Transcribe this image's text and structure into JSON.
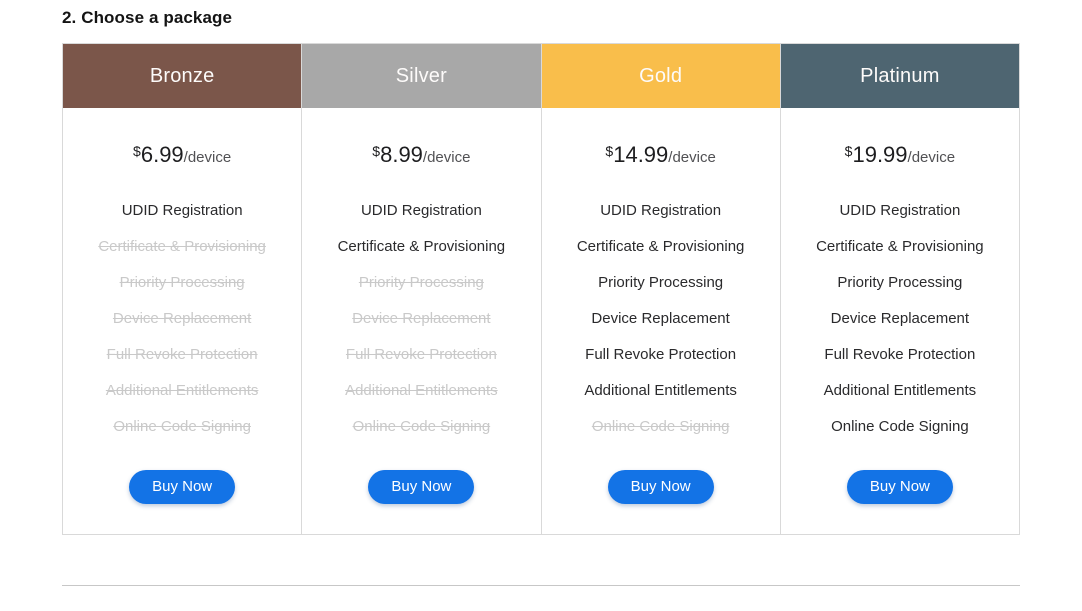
{
  "page": {
    "title": "2. Choose a package"
  },
  "colors": {
    "bronze_header": "#7b564a",
    "silver_header": "#a8a8a8",
    "gold_header": "#f9be4b",
    "platinum_header": "#4e6571",
    "buy_button": "#1373e6"
  },
  "packages": [
    {
      "name": "Bronze",
      "header_color": "#7b564a",
      "price_currency": "$",
      "price_amount": "6.99",
      "price_unit": "/device",
      "buy_label": "Buy Now",
      "features": [
        {
          "label": "UDID Registration",
          "included": true
        },
        {
          "label": "Certificate & Provisioning",
          "included": false
        },
        {
          "label": "Priority Processing",
          "included": false
        },
        {
          "label": "Device Replacement",
          "included": false
        },
        {
          "label": "Full Revoke Protection",
          "included": false
        },
        {
          "label": "Additional Entitlements",
          "included": false
        },
        {
          "label": "Online Code Signing",
          "included": false
        }
      ]
    },
    {
      "name": "Silver",
      "header_color": "#a8a8a8",
      "price_currency": "$",
      "price_amount": "8.99",
      "price_unit": "/device",
      "buy_label": "Buy Now",
      "features": [
        {
          "label": "UDID Registration",
          "included": true
        },
        {
          "label": "Certificate & Provisioning",
          "included": true
        },
        {
          "label": "Priority Processing",
          "included": false
        },
        {
          "label": "Device Replacement",
          "included": false
        },
        {
          "label": "Full Revoke Protection",
          "included": false
        },
        {
          "label": "Additional Entitlements",
          "included": false
        },
        {
          "label": "Online Code Signing",
          "included": false
        }
      ]
    },
    {
      "name": "Gold",
      "header_color": "#f9be4b",
      "price_currency": "$",
      "price_amount": "14.99",
      "price_unit": "/device",
      "buy_label": "Buy Now",
      "features": [
        {
          "label": "UDID Registration",
          "included": true
        },
        {
          "label": "Certificate & Provisioning",
          "included": true
        },
        {
          "label": "Priority Processing",
          "included": true
        },
        {
          "label": "Device Replacement",
          "included": true
        },
        {
          "label": "Full Revoke Protection",
          "included": true
        },
        {
          "label": "Additional Entitlements",
          "included": true
        },
        {
          "label": "Online Code Signing",
          "included": false
        }
      ]
    },
    {
      "name": "Platinum",
      "header_color": "#4e6571",
      "price_currency": "$",
      "price_amount": "19.99",
      "price_unit": "/device",
      "buy_label": "Buy Now",
      "features": [
        {
          "label": "UDID Registration",
          "included": true
        },
        {
          "label": "Certificate & Provisioning",
          "included": true
        },
        {
          "label": "Priority Processing",
          "included": true
        },
        {
          "label": "Device Replacement",
          "included": true
        },
        {
          "label": "Full Revoke Protection",
          "included": true
        },
        {
          "label": "Additional Entitlements",
          "included": true
        },
        {
          "label": "Online Code Signing",
          "included": true
        }
      ]
    }
  ]
}
